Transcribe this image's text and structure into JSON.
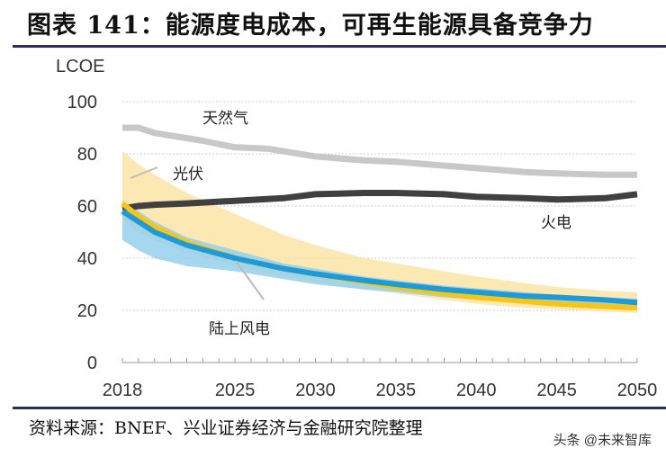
{
  "header": {
    "title": "图表 141：能源度电成本，可再生能源具备竞争力"
  },
  "footer": {
    "source": "资料来源：BNEF、兴业证券经济与金融研究院整理",
    "watermark": "头条 @未来智库"
  },
  "chart_data": {
    "type": "line",
    "title": "",
    "ylabel": "LCOE",
    "xlabel": "",
    "xlim": [
      2018,
      2050
    ],
    "ylim": [
      0,
      100
    ],
    "x_ticks": [
      "2018",
      "2025",
      "2030",
      "2035",
      "2040",
      "2045",
      "2050"
    ],
    "y_ticks": [
      "0",
      "20",
      "40",
      "60",
      "80",
      "100"
    ],
    "grid": "horizontal dashed",
    "series": [
      {
        "name": "天然气",
        "color": "#c8c8c8",
        "x": [
          2018,
          2019,
          2020,
          2022,
          2023,
          2025,
          2027,
          2030,
          2033,
          2035,
          2038,
          2040,
          2043,
          2045,
          2048,
          2050
        ],
        "y": [
          90,
          90,
          88,
          86,
          85,
          82.5,
          82,
          79,
          77.5,
          77,
          75.5,
          74.5,
          73,
          72.5,
          72,
          72
        ]
      },
      {
        "name": "火电",
        "color": "#404040",
        "x": [
          2018,
          2019,
          2020,
          2022,
          2025,
          2028,
          2030,
          2033,
          2035,
          2038,
          2040,
          2043,
          2045,
          2048,
          2050
        ],
        "y": [
          59,
          60,
          60.5,
          61,
          62,
          63,
          64.5,
          65,
          65,
          64.5,
          63.5,
          63,
          62.5,
          63,
          64.5
        ]
      },
      {
        "name": "光伏",
        "color": "#f5c518",
        "band_color": "#fbe2a0",
        "x": [
          2018,
          2019,
          2020,
          2022,
          2025,
          2028,
          2030,
          2033,
          2035,
          2038,
          2040,
          2043,
          2045,
          2048,
          2050
        ],
        "y": [
          61,
          56,
          52,
          46,
          40,
          36,
          34,
          31,
          29,
          26.5,
          25,
          23.5,
          22.5,
          21.5,
          21
        ],
        "upper": [
          81,
          76,
          72,
          65,
          57,
          49,
          45,
          40,
          38,
          35,
          33,
          30.5,
          29,
          27.5,
          27
        ],
        "lower": [
          55,
          50,
          47,
          42,
          37,
          33,
          31,
          28,
          26.5,
          24,
          22.5,
          21,
          20.5,
          19.5,
          19
        ]
      },
      {
        "name": "陆上风电",
        "color": "#1e9ad6",
        "band_color": "#8fcdee",
        "x": [
          2018,
          2019,
          2020,
          2022,
          2025,
          2028,
          2030,
          2033,
          2035,
          2038,
          2040,
          2043,
          2045,
          2048,
          2050
        ],
        "y": [
          58,
          54,
          50,
          45,
          40,
          36,
          34,
          31.5,
          30,
          28,
          27,
          25.5,
          25,
          24,
          23
        ],
        "upper": [
          62,
          58,
          54,
          48,
          43,
          38,
          36,
          33,
          31.5,
          29.5,
          28.5,
          27,
          26,
          25,
          24.5
        ],
        "lower": [
          47,
          43,
          40,
          37,
          35,
          32,
          30,
          28,
          27,
          25,
          24,
          23,
          22.5,
          21.5,
          21
        ]
      }
    ]
  }
}
